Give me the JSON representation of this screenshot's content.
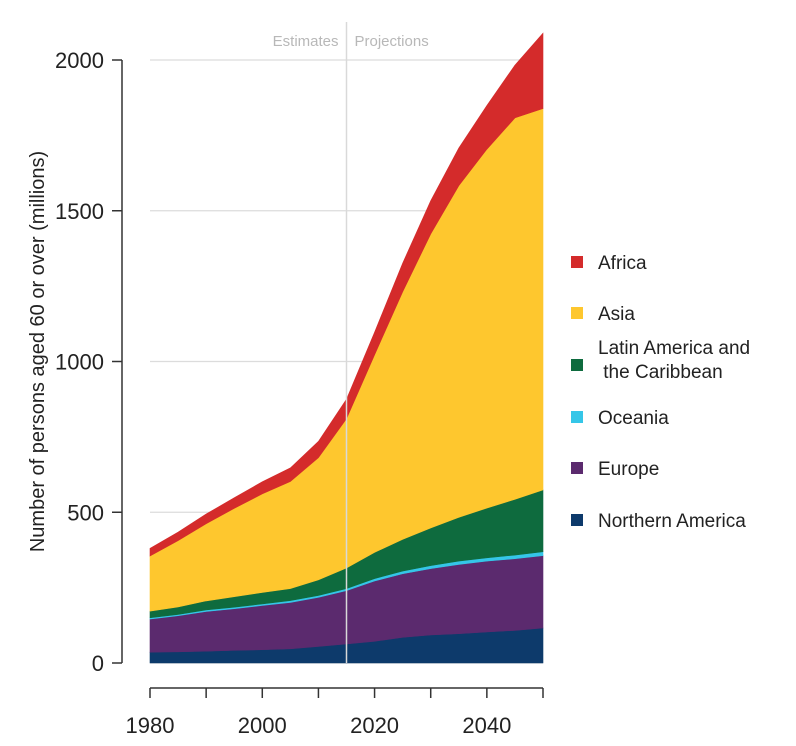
{
  "chart_data": {
    "type": "area",
    "stacked": true,
    "title": "",
    "xlabel": "",
    "ylabel": "Number of persons aged 60 or over (millions)",
    "xlim": [
      1980,
      2050
    ],
    "ylim": [
      0,
      2100
    ],
    "x_ticks": [
      1980,
      2000,
      2020,
      2040
    ],
    "y_ticks": [
      0,
      500,
      1000,
      1500,
      2000
    ],
    "grid": "horizontal",
    "divider_x": 2015,
    "period_labels": {
      "left": "Estimates",
      "right": "Projections"
    },
    "legend_position": "right",
    "x": [
      1980,
      1985,
      1990,
      1995,
      2000,
      2005,
      2010,
      2015,
      2020,
      2025,
      2030,
      2035,
      2040,
      2045,
      2050
    ],
    "series": [
      {
        "name": "Northern America",
        "color": "#0d3a6b",
        "values": [
          36,
          37,
          39,
          42,
          44,
          47,
          55,
          63,
          72,
          85,
          93,
          97,
          103,
          108,
          116
        ]
      },
      {
        "name": "Europe",
        "color": "#5b2a6e",
        "values": [
          110,
          120,
          132,
          138,
          147,
          154,
          163,
          177,
          200,
          211,
          220,
          230,
          235,
          238,
          240
        ]
      },
      {
        "name": "Oceania",
        "color": "#35c6e8",
        "values": [
          4,
          4,
          5,
          5,
          5,
          6,
          6,
          7,
          8,
          9,
          10,
          11,
          11,
          12,
          13
        ]
      },
      {
        "name": "Latin America and\n the Caribbean",
        "color": "#0e6b3e",
        "values": [
          22,
          25,
          30,
          35,
          38,
          40,
          52,
          68,
          87,
          105,
          125,
          145,
          165,
          185,
          205
        ]
      },
      {
        "name": "Asia",
        "color": "#fec72e",
        "values": [
          183,
          220,
          256,
          293,
          327,
          355,
          405,
          495,
          655,
          821,
          975,
          1100,
          1190,
          1265,
          1265
        ]
      },
      {
        "name": "Africa",
        "color": "#d42b2b",
        "values": [
          25,
          28,
          32,
          35,
          40,
          45,
          54,
          65,
          75,
          95,
          110,
          125,
          145,
          175,
          250
        ]
      }
    ]
  }
}
